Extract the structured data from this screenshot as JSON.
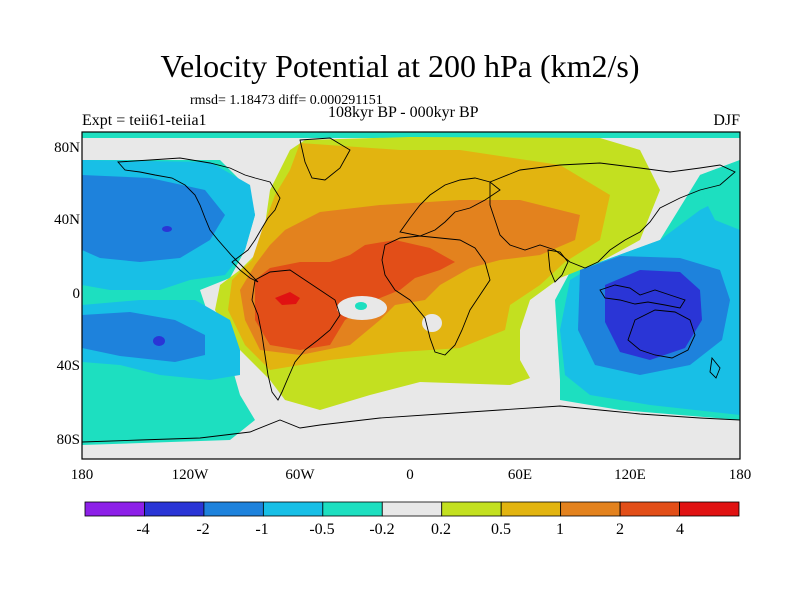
{
  "figure": {
    "title": "Velocity Potential at 200 hPa (km2/s)",
    "rmsd_text": "rmsd= 1.18473 diff= 0.000291151",
    "periods_text": "108kyr BP - 000kyr BP",
    "experiment_text": "Expt = teii61-teiia1",
    "season": "DJF"
  },
  "map": {
    "projection": "cylindrical equidistant",
    "lon_range": [
      -180,
      180
    ],
    "lat_range": [
      -90,
      90
    ],
    "lat_ticks": [
      "80N",
      "40N",
      "0",
      "40S",
      "80S"
    ],
    "lon_ticks": [
      "180",
      "120W",
      "60W",
      "0",
      "60E",
      "120E",
      "180"
    ],
    "features": [
      {
        "name": "pacific-negative-center",
        "sign": "negative",
        "level": "-2 to -1"
      },
      {
        "name": "maritime-continent-negative-center",
        "sign": "negative",
        "level": "below -2"
      },
      {
        "name": "south-america-positive-center",
        "sign": "positive",
        "level": "above 2"
      },
      {
        "name": "africa-positive-center",
        "sign": "positive",
        "level": "1 to 2"
      }
    ]
  },
  "colorbar": {
    "labels": [
      "-4",
      "-2",
      "-1",
      "-0.5",
      "-0.2",
      "0.2",
      "0.5",
      "1",
      "2",
      "4"
    ],
    "colors": [
      "#8d20e8",
      "#2a35d6",
      "#1e82dc",
      "#18bfe6",
      "#1ddfc0",
      "#e8e8e8",
      "#c3e020",
      "#e2b410",
      "#e3821e",
      "#e24e18",
      "#e01212"
    ]
  }
}
